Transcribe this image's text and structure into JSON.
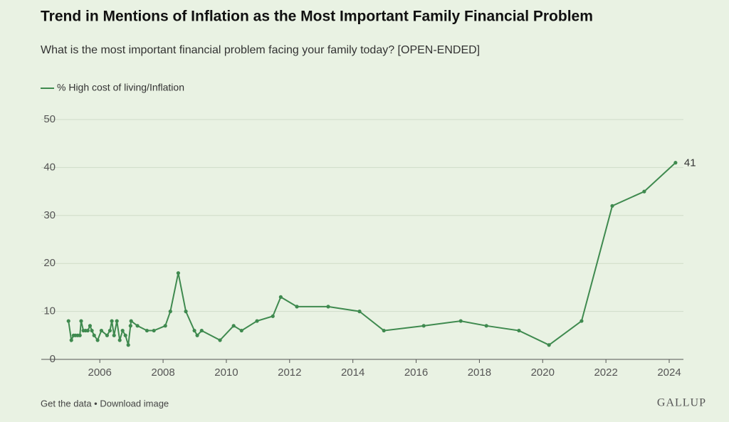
{
  "chart_data": {
    "type": "line",
    "title": "Trend in Mentions of Inflation as the Most Important Family Financial Problem",
    "subtitle": "What is the most important financial problem facing your family today? [OPEN-ENDED]",
    "x": [
      2005.01,
      2005.1,
      2005.17,
      2005.23,
      2005.3,
      2005.37,
      2005.41,
      2005.48,
      2005.55,
      2005.62,
      2005.69,
      2005.75,
      2005.82,
      2005.93,
      2006.05,
      2006.23,
      2006.32,
      2006.38,
      2006.45,
      2006.54,
      2006.63,
      2006.72,
      2006.81,
      2006.9,
      2006.97,
      2006.99,
      2007.19,
      2007.49,
      2007.71,
      2008.07,
      2008.23,
      2008.48,
      2008.72,
      2008.99,
      2009.08,
      2009.22,
      2009.8,
      2010.23,
      2010.48,
      2010.97,
      2011.47,
      2011.72,
      2012.23,
      2013.22,
      2014.21,
      2014.98,
      2016.24,
      2017.41,
      2018.22,
      2019.25,
      2020.2,
      2021.23,
      2022.2,
      2023.21,
      2024.2
    ],
    "series": [
      {
        "name": "% High cost of living/Inflation",
        "color": "#3f8a4f",
        "values": [
          8,
          4,
          5,
          5,
          5,
          5,
          8,
          6,
          6,
          6,
          7,
          6,
          5,
          4,
          6,
          5,
          6,
          8,
          5,
          8,
          4,
          6,
          5,
          3,
          7,
          8,
          7,
          6,
          6,
          7,
          10,
          18,
          10,
          6,
          5,
          6,
          4,
          7,
          6,
          8,
          9,
          13,
          11,
          11,
          10,
          6,
          7,
          8,
          7,
          6,
          3,
          8,
          32,
          35,
          41
        ]
      }
    ],
    "xlim": [
      2004.15,
      2024.45
    ],
    "xticks": [
      2006,
      2008,
      2010,
      2012,
      2014,
      2016,
      2018,
      2020,
      2022,
      2024
    ],
    "ylim": [
      0,
      50
    ],
    "yticks": [
      0,
      10,
      20,
      30,
      40,
      50
    ],
    "grid": true,
    "footer": "Get the data • Download image",
    "source": "GALLUP"
  }
}
